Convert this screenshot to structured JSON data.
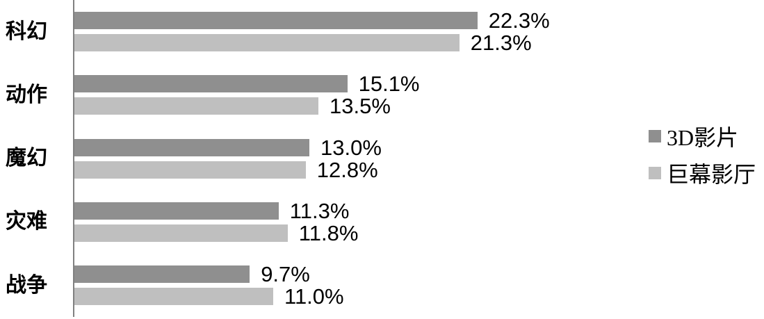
{
  "chart_data": {
    "type": "bar",
    "orientation": "horizontal",
    "title": "",
    "categories": [
      "科幻",
      "动作",
      "魔幻",
      "灾难",
      "战争"
    ],
    "series": [
      {
        "name": "3D影片",
        "color": "#8f8f8f",
        "values": [
          22.3,
          15.1,
          13.0,
          11.3,
          9.7
        ],
        "labels": [
          "22.3%",
          "15.1%",
          "13.0%",
          "11.3%",
          "9.7%"
        ]
      },
      {
        "name": "巨幕影厅",
        "color": "#bfbfbf",
        "values": [
          21.3,
          13.5,
          12.8,
          11.8,
          11.0
        ],
        "labels": [
          "21.3%",
          "13.5%",
          "12.8%",
          "11.8%",
          "11.0%"
        ]
      }
    ],
    "xlim": [
      0,
      25
    ],
    "grid": false,
    "legend_position": "right",
    "axis_color": "#808080",
    "value_label_color": "#000000",
    "category_label_color": "#000000"
  }
}
